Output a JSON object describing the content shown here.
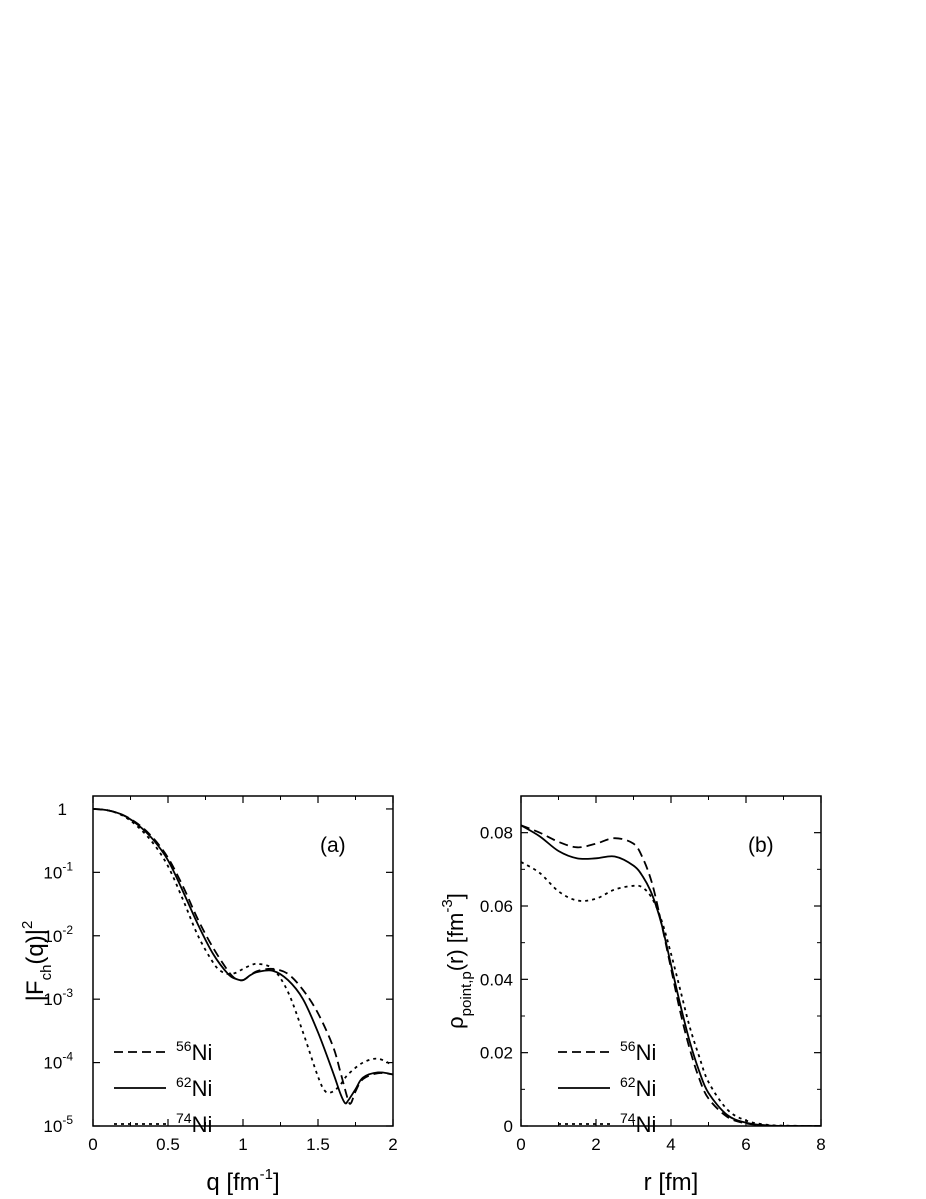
{
  "chart_data": [
    {
      "type": "line",
      "panel_label": "(a)",
      "xlabel": "q [fm",
      "xlabel_sup": "-1",
      "xlabel_end": "]",
      "ylabel": "|F",
      "ylabel_sub": "ch",
      "ylabel_mid": "(q)|",
      "ylabel_sup": "2",
      "y_scale": "log",
      "xlim": [
        0,
        2
      ],
      "ylim": [
        1e-05,
        1.6
      ],
      "x_ticks": [
        {
          "value": 0,
          "label": "0"
        },
        {
          "value": 0.5,
          "label": "0.5"
        },
        {
          "value": 1,
          "label": "1"
        },
        {
          "value": 1.5,
          "label": "1.5"
        },
        {
          "value": 2,
          "label": "2"
        }
      ],
      "y_ticks": [
        {
          "value": 1,
          "base": "1",
          "exp": ""
        },
        {
          "value": 0.1,
          "base": "10",
          "exp": "-1"
        },
        {
          "value": 0.01,
          "base": "10",
          "exp": "-2"
        },
        {
          "value": 0.001,
          "base": "10",
          "exp": "-3"
        },
        {
          "value": 0.0001,
          "base": "10",
          "exp": "-4"
        },
        {
          "value": 1e-05,
          "base": "10",
          "exp": "-5"
        }
      ],
      "legend_position": "bottom-left",
      "series": [
        {
          "name": "Ni",
          "mass": "56",
          "dash": "9,5",
          "x": [
            0,
            0.1,
            0.2,
            0.3,
            0.4,
            0.5,
            0.6,
            0.7,
            0.8,
            0.9,
            0.95,
            1.0,
            1.05,
            1.1,
            1.2,
            1.3,
            1.4,
            1.5,
            1.6,
            1.65,
            1.7,
            1.72,
            1.75,
            1.8,
            1.9,
            2.0
          ],
          "y": [
            1,
            0.95,
            0.8,
            0.58,
            0.35,
            0.17,
            0.06,
            0.018,
            0.0065,
            0.0028,
            0.0021,
            0.002,
            0.0024,
            0.0028,
            0.003,
            0.0025,
            0.0014,
            0.0006,
            0.00018,
            7e-05,
            2.6e-05,
            2.3e-05,
            3.5e-05,
            5.5e-05,
            6.8e-05,
            6.5e-05
          ]
        },
        {
          "name": "Ni",
          "mass": "62",
          "dash": "",
          "x": [
            0,
            0.1,
            0.2,
            0.3,
            0.4,
            0.5,
            0.6,
            0.7,
            0.8,
            0.9,
            0.95,
            1.0,
            1.05,
            1.1,
            1.2,
            1.3,
            1.4,
            1.5,
            1.6,
            1.65,
            1.68,
            1.7,
            1.75,
            1.8,
            1.9,
            2.0
          ],
          "y": [
            1,
            0.95,
            0.8,
            0.56,
            0.33,
            0.155,
            0.05,
            0.015,
            0.0052,
            0.0025,
            0.0021,
            0.002,
            0.0024,
            0.0027,
            0.0028,
            0.002,
            0.001,
            0.0003,
            7e-05,
            3.2e-05,
            2.3e-05,
            2.5e-05,
            3.8e-05,
            5.8e-05,
            7e-05,
            6.5e-05
          ]
        },
        {
          "name": "Ni",
          "mass": "74",
          "dash": "3,4",
          "x": [
            0,
            0.1,
            0.2,
            0.3,
            0.4,
            0.5,
            0.6,
            0.7,
            0.8,
            0.85,
            0.9,
            0.95,
            1.0,
            1.05,
            1.1,
            1.2,
            1.3,
            1.4,
            1.5,
            1.55,
            1.6,
            1.65,
            1.7,
            1.8,
            1.9,
            2.0
          ],
          "y": [
            1,
            0.95,
            0.78,
            0.52,
            0.29,
            0.125,
            0.037,
            0.01,
            0.0038,
            0.0028,
            0.0025,
            0.0026,
            0.003,
            0.0034,
            0.0036,
            0.003,
            0.0013,
            0.0003,
            6e-05,
            3.5e-05,
            3.5e-05,
            4.5e-05,
            6.5e-05,
            0.0001,
            0.000115,
            9e-05
          ]
        }
      ]
    },
    {
      "type": "line",
      "panel_label": "(b)",
      "xlabel": "r [fm]",
      "ylabel": "ρ",
      "ylabel_sub": "point,p",
      "ylabel_mid": "(r) [fm",
      "ylabel_sup": "-3",
      "ylabel_end": "]",
      "xlim": [
        0,
        8
      ],
      "ylim": [
        0,
        0.09
      ],
      "x_ticks": [
        {
          "value": 0,
          "label": "0"
        },
        {
          "value": 2,
          "label": "2"
        },
        {
          "value": 4,
          "label": "4"
        },
        {
          "value": 6,
          "label": "6"
        },
        {
          "value": 8,
          "label": "8"
        }
      ],
      "y_ticks": [
        {
          "value": 0,
          "label": "0"
        },
        {
          "value": 0.02,
          "label": "0.02"
        },
        {
          "value": 0.04,
          "label": "0.04"
        },
        {
          "value": 0.06,
          "label": "0.06"
        },
        {
          "value": 0.08,
          "label": "0.08"
        }
      ],
      "legend_position": "bottom-left",
      "series": [
        {
          "name": "Ni",
          "mass": "56",
          "dash": "9,5",
          "x": [
            0,
            0.5,
            1.0,
            1.5,
            2.0,
            2.5,
            3.0,
            3.25,
            3.5,
            3.75,
            4.0,
            4.25,
            4.5,
            4.75,
            5.0,
            5.5,
            6.0,
            6.5,
            7.0,
            8.0
          ],
          "y": [
            0.082,
            0.08,
            0.0775,
            0.076,
            0.077,
            0.0785,
            0.077,
            0.073,
            0.066,
            0.055,
            0.043,
            0.031,
            0.021,
            0.013,
            0.0075,
            0.0025,
            0.0007,
            0.0002,
            0.0,
            0.0
          ]
        },
        {
          "name": "Ni",
          "mass": "62",
          "dash": "",
          "x": [
            0,
            0.5,
            1.0,
            1.5,
            2.0,
            2.5,
            3.0,
            3.25,
            3.5,
            3.75,
            4.0,
            4.25,
            4.5,
            4.75,
            5.0,
            5.5,
            6.0,
            6.5,
            7.0,
            8.0
          ],
          "y": [
            0.082,
            0.079,
            0.075,
            0.073,
            0.073,
            0.0735,
            0.071,
            0.068,
            0.063,
            0.055,
            0.044,
            0.033,
            0.023,
            0.015,
            0.009,
            0.003,
            0.0009,
            0.0002,
            0.0,
            0.0
          ]
        },
        {
          "name": "Ni",
          "mass": "74",
          "dash": "3,4",
          "x": [
            0,
            0.5,
            1.0,
            1.5,
            2.0,
            2.5,
            3.0,
            3.25,
            3.5,
            3.75,
            4.0,
            4.25,
            4.5,
            4.75,
            5.0,
            5.5,
            6.0,
            6.5,
            7.0,
            8.0
          ],
          "y": [
            0.072,
            0.069,
            0.064,
            0.0615,
            0.062,
            0.0645,
            0.0655,
            0.065,
            0.062,
            0.056,
            0.047,
            0.037,
            0.027,
            0.019,
            0.012,
            0.0045,
            0.0015,
            0.0004,
            0.0001,
            0.0
          ]
        }
      ]
    }
  ]
}
